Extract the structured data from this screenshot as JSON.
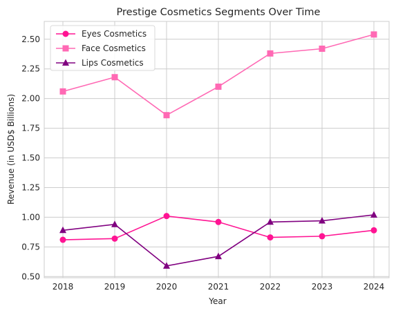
{
  "chart_data": {
    "type": "line",
    "title": "Prestige Cosmetics Segments Over Time",
    "xlabel": "Year",
    "ylabel": "Revenue (in USD$ Billions)",
    "categories": [
      "2018",
      "2019",
      "2020",
      "2021",
      "2022",
      "2023",
      "2024"
    ],
    "x_ticks": [
      "2018",
      "2019",
      "2020",
      "2021",
      "2022",
      "2023",
      "2024"
    ],
    "y_ticks": [
      "0.50",
      "0.75",
      "1.00",
      "1.25",
      "1.50",
      "1.75",
      "2.00",
      "2.25",
      "2.50"
    ],
    "y_tick_values": [
      0.5,
      0.75,
      1.0,
      1.25,
      1.5,
      1.75,
      2.0,
      2.25,
      2.5
    ],
    "ylim": [
      0.49,
      2.65
    ],
    "grid": true,
    "legend_position": "top-left",
    "series": [
      {
        "name": "Eyes Cosmetics",
        "values": [
          0.81,
          0.82,
          1.01,
          0.96,
          0.83,
          0.84,
          0.89
        ],
        "color": "#ff1493",
        "marker": "circle"
      },
      {
        "name": "Face Cosmetics",
        "values": [
          2.06,
          2.18,
          1.86,
          2.1,
          2.38,
          2.42,
          2.54
        ],
        "color": "#ff69b4",
        "marker": "square"
      },
      {
        "name": "Lips Cosmetics",
        "values": [
          0.89,
          0.94,
          0.59,
          0.67,
          0.96,
          0.97,
          1.02
        ],
        "color": "#800080",
        "marker": "triangle"
      }
    ]
  }
}
